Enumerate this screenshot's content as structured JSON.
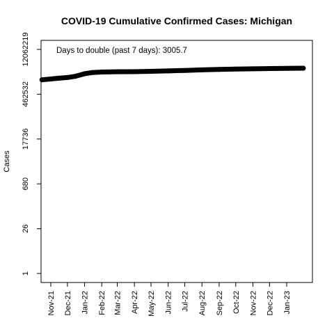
{
  "chart_data": {
    "type": "line",
    "title": "COVID-19 Cumulative Confirmed Cases: Michigan",
    "xlabel": "",
    "ylabel": "Cases",
    "y_scale": "log",
    "yticks": [
      1,
      26,
      680,
      17736,
      462532,
      12062219
    ],
    "ytick_labels": [
      "1",
      "26",
      "680",
      "17736",
      "462532",
      "12062219"
    ],
    "xtick_labels": [
      "Nov-21",
      "Dec-21",
      "Jan-22",
      "Feb-22",
      "Mar-22",
      "Apr-22",
      "May-22",
      "Jun-22",
      "Jul-22",
      "Aug-22",
      "Sep-22",
      "Oct-22",
      "Nov-22",
      "Dec-22",
      "Jan-23"
    ],
    "xticks": [
      "2021-11-01",
      "2021-12-01",
      "2022-01-01",
      "2022-02-01",
      "2022-03-01",
      "2022-04-01",
      "2022-05-01",
      "2022-06-01",
      "2022-07-01",
      "2022-08-01",
      "2022-09-01",
      "2022-10-01",
      "2022-11-01",
      "2022-12-01",
      "2023-01-01"
    ],
    "annotation": "Days to double (past 7 days): 3005.7",
    "grid": false,
    "series": [
      {
        "color": "#000000",
        "points": [
          {
            "x": "2021-10-16",
            "y": 1320000
          },
          {
            "x": "2021-11-01",
            "y": 1400000
          },
          {
            "x": "2021-11-15",
            "y": 1480000
          },
          {
            "x": "2021-12-01",
            "y": 1560000
          },
          {
            "x": "2021-12-15",
            "y": 1700000
          },
          {
            "x": "2022-01-01",
            "y": 2050000
          },
          {
            "x": "2022-01-15",
            "y": 2250000
          },
          {
            "x": "2022-02-01",
            "y": 2330000
          },
          {
            "x": "2022-03-01",
            "y": 2370000
          },
          {
            "x": "2022-04-01",
            "y": 2390000
          },
          {
            "x": "2022-05-01",
            "y": 2450000
          },
          {
            "x": "2022-06-01",
            "y": 2520000
          },
          {
            "x": "2022-07-01",
            "y": 2620000
          },
          {
            "x": "2022-08-01",
            "y": 2720000
          },
          {
            "x": "2022-09-01",
            "y": 2810000
          },
          {
            "x": "2022-10-01",
            "y": 2880000
          },
          {
            "x": "2022-11-01",
            "y": 2930000
          },
          {
            "x": "2022-12-01",
            "y": 2990000
          },
          {
            "x": "2023-01-01",
            "y": 3050000
          },
          {
            "x": "2023-01-31",
            "y": 3080000
          }
        ]
      }
    ]
  }
}
